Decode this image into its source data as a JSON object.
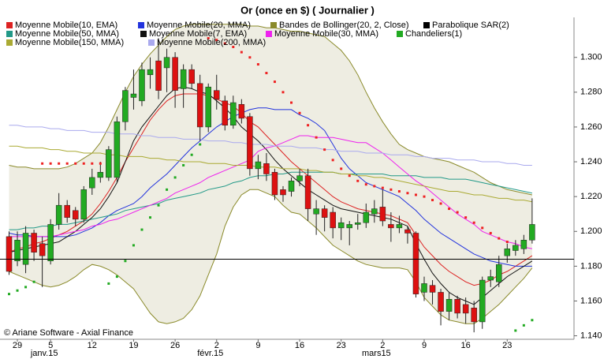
{
  "chart_data": {
    "type": "candlestick",
    "title": "Or (once en $)  ( Journalier )",
    "credit": "© Ariane Software - Axial Finance",
    "categories": [
      null,
      "29",
      null,
      null,
      null,
      "5",
      null,
      null,
      null,
      null,
      "12",
      null,
      null,
      null,
      null,
      "19",
      null,
      null,
      null,
      null,
      "26",
      null,
      null,
      null,
      null,
      "2",
      null,
      null,
      null,
      null,
      "9",
      null,
      null,
      null,
      null,
      "16",
      null,
      null,
      null,
      null,
      "23",
      null,
      null,
      null,
      null,
      "2",
      null,
      null,
      null,
      null,
      "9",
      null,
      null,
      null,
      null,
      "16",
      null,
      null,
      null,
      null,
      "23",
      null,
      null,
      null
    ],
    "period_labels": [
      null,
      null,
      null,
      null,
      null,
      "janv.15",
      null,
      null,
      null,
      null,
      null,
      null,
      null,
      null,
      null,
      null,
      null,
      null,
      null,
      null,
      null,
      null,
      null,
      null,
      null,
      "févr.15",
      null,
      null,
      null,
      null,
      null,
      null,
      null,
      null,
      null,
      null,
      null,
      null,
      null,
      null,
      null,
      null,
      null,
      null,
      null,
      "mars15",
      null,
      null,
      null,
      null,
      null,
      null,
      null,
      null,
      null,
      null,
      null,
      null,
      null,
      null,
      null,
      null,
      null,
      null
    ],
    "ylim": [
      1.138,
      1.323
    ],
    "yticks": [
      {
        "value": 1.14,
        "label": "1.140"
      },
      {
        "value": 1.16,
        "label": "1.160"
      },
      {
        "value": 1.18,
        "label": "1.180"
      },
      {
        "value": 1.2,
        "label": "1.200"
      },
      {
        "value": 1.22,
        "label": "1.220"
      },
      {
        "value": 1.24,
        "label": "1.240"
      },
      {
        "value": 1.26,
        "label": "1.260"
      },
      {
        "value": 1.28,
        "label": "1.280"
      },
      {
        "value": 1.3,
        "label": "1.300"
      }
    ],
    "hline": 1.184,
    "series": [
      {
        "name": "Moyenne Mobile(10, EMA)",
        "kind": "line",
        "color": "#dd2222",
        "values": [
          1.188,
          1.19,
          1.191,
          1.193,
          1.194,
          1.196,
          1.198,
          1.2,
          1.203,
          1.206,
          1.21,
          1.216,
          1.223,
          1.231,
          1.24,
          1.248,
          1.256,
          1.264,
          1.27,
          1.275,
          1.278,
          1.279,
          1.279,
          1.279,
          1.278,
          1.276,
          1.274,
          1.272,
          1.268,
          1.263,
          1.26,
          1.255,
          1.25,
          1.245,
          1.24,
          1.236,
          1.232,
          1.228,
          1.224,
          1.22,
          1.217,
          1.215,
          1.213,
          1.212,
          1.211,
          1.21,
          1.209,
          1.207,
          1.205,
          1.198,
          1.191,
          1.186,
          1.181,
          1.177,
          1.174,
          1.171,
          1.169,
          1.17,
          1.172,
          1.175,
          1.177,
          1.18,
          1.183,
          1.186
        ]
      },
      {
        "name": "Moyenne Mobile(20, MMA)",
        "kind": "line",
        "color": "#2233dd",
        "values": [
          1.199,
          1.198,
          1.198,
          1.197,
          1.197,
          1.197,
          1.197,
          1.197,
          1.198,
          1.2,
          1.202,
          1.205,
          1.209,
          1.212,
          1.214,
          1.216,
          1.22,
          1.225,
          1.229,
          1.233,
          1.238,
          1.243,
          1.248,
          1.252,
          1.256,
          1.26,
          1.263,
          1.266,
          1.268,
          1.27,
          1.271,
          1.271,
          1.27,
          1.27,
          1.27,
          1.267,
          1.265,
          1.262,
          1.258,
          1.25,
          1.242,
          1.236,
          1.232,
          1.228,
          1.226,
          1.224,
          1.222,
          1.22,
          1.216,
          1.212,
          1.207,
          1.203,
          1.199,
          1.196,
          1.193,
          1.19,
          1.187,
          1.185,
          1.183,
          1.182,
          1.181,
          1.18,
          1.18,
          1.18
        ]
      },
      {
        "name": "Bandes de Bollinger(20, 2, Close)",
        "kind": "band",
        "color": "#8a8a2a",
        "fill": "#eeede2",
        "upper": [
          1.238,
          1.237,
          1.237,
          1.236,
          1.236,
          1.236,
          1.236,
          1.237,
          1.239,
          1.242,
          1.245,
          1.251,
          1.26,
          1.27,
          1.28,
          1.289,
          1.296,
          1.302,
          1.307,
          1.312,
          1.316,
          1.318,
          1.319,
          1.319,
          1.319,
          1.319,
          1.319,
          1.319,
          1.319,
          1.318,
          1.318,
          1.317,
          1.317,
          1.316,
          1.315,
          1.315,
          1.314,
          1.313,
          1.312,
          1.308,
          1.304,
          1.298,
          1.29,
          1.28,
          1.271,
          1.263,
          1.256,
          1.25,
          1.247,
          1.245,
          1.243,
          1.242,
          1.241,
          1.24,
          1.238,
          1.236,
          1.234,
          1.231,
          1.228,
          1.226,
          1.224,
          1.223,
          1.222,
          1.221
        ],
        "lower": [
          1.177,
          1.175,
          1.173,
          1.171,
          1.169,
          1.168,
          1.169,
          1.171,
          1.174,
          1.178,
          1.181,
          1.18,
          1.178,
          1.175,
          1.171,
          1.167,
          1.16,
          1.153,
          1.148,
          1.147,
          1.148,
          1.15,
          1.155,
          1.163,
          1.175,
          1.187,
          1.203,
          1.214,
          1.221,
          1.224,
          1.224,
          1.222,
          1.22,
          1.215,
          1.211,
          1.21,
          1.206,
          1.202,
          1.197,
          1.192,
          1.189,
          1.186,
          1.183,
          1.181,
          1.18,
          1.179,
          1.179,
          1.179,
          1.178,
          1.171,
          1.162,
          1.157,
          1.152,
          1.149,
          1.148,
          1.147,
          1.147,
          1.15,
          1.154,
          1.158,
          1.163,
          1.168,
          1.173,
          1.179
        ]
      },
      {
        "name": "Parabolique SAR(2)",
        "kind": "dots",
        "color": "#000000",
        "above_color": "#ee2222",
        "below_color": "#22aa22",
        "values": [
          1.164,
          1.166,
          1.168,
          1.171,
          1.239,
          1.239,
          1.239,
          1.239,
          1.239,
          1.239,
          1.239,
          1.239,
          1.17,
          1.174,
          1.183,
          1.192,
          1.201,
          1.208,
          1.215,
          1.224,
          1.231,
          1.238,
          1.244,
          1.25,
          1.311,
          1.31,
          1.308,
          1.306,
          1.303,
          1.3,
          1.296,
          1.291,
          1.286,
          1.28,
          1.274,
          1.268,
          1.261,
          1.254,
          1.247,
          1.241,
          1.236,
          1.232,
          1.229,
          1.227,
          1.226,
          1.225,
          1.224,
          1.223,
          1.222,
          1.221,
          1.22,
          1.218,
          1.216,
          1.213,
          1.211,
          1.208,
          1.205,
          1.202,
          1.199,
          1.196,
          1.194,
          1.143,
          1.146,
          1.149
        ]
      },
      {
        "name": "Moyenne Mobile(50, MMA)",
        "kind": "line",
        "color": "#229988",
        "values": [
          1.201,
          1.201,
          1.202,
          1.202,
          1.203,
          1.203,
          1.204,
          1.204,
          1.205,
          1.206,
          1.207,
          1.208,
          1.209,
          1.21,
          1.212,
          1.213,
          1.214,
          1.215,
          1.216,
          1.218,
          1.219,
          1.22,
          1.221,
          1.222,
          1.224,
          1.225,
          1.226,
          1.228,
          1.229,
          1.231,
          1.232,
          1.232,
          1.233,
          1.233,
          1.234,
          1.234,
          1.234,
          1.234,
          1.234,
          1.234,
          1.233,
          1.233,
          1.233,
          1.233,
          1.233,
          1.233,
          1.232,
          1.232,
          1.232,
          1.232,
          1.231,
          1.231,
          1.231,
          1.23,
          1.23,
          1.23,
          1.229,
          1.228,
          1.227,
          1.226,
          1.225,
          1.224,
          1.223,
          1.222
        ]
      },
      {
        "name": "Moyenne Mobile(7, EMA)",
        "kind": "line",
        "color": "#111111",
        "values": [
          1.188,
          1.189,
          1.19,
          1.191,
          1.192,
          1.193,
          1.194,
          1.197,
          1.2,
          1.204,
          1.208,
          1.213,
          1.22,
          1.228,
          1.24,
          1.252,
          1.26,
          1.266,
          1.272,
          1.278,
          1.282,
          1.283,
          1.282,
          1.28,
          1.279,
          1.275,
          1.271,
          1.266,
          1.26,
          1.256,
          1.252,
          1.247,
          1.241,
          1.236,
          1.232,
          1.228,
          1.224,
          1.221,
          1.218,
          1.215,
          1.213,
          1.212,
          1.211,
          1.21,
          1.209,
          1.208,
          1.207,
          1.205,
          1.203,
          1.193,
          1.184,
          1.176,
          1.17,
          1.165,
          1.162,
          1.16,
          1.158,
          1.162,
          1.166,
          1.17,
          1.174,
          1.177,
          1.18,
          1.183
        ]
      },
      {
        "name": "Moyenne Mobile(30, MMA)",
        "kind": "line",
        "color": "#ee22ee",
        "values": [
          1.197,
          1.197,
          1.197,
          1.197,
          1.197,
          1.197,
          1.198,
          1.199,
          1.2,
          1.201,
          1.203,
          1.204,
          1.206,
          1.207,
          1.209,
          1.211,
          1.213,
          1.215,
          1.217,
          1.219,
          1.222,
          1.224,
          1.226,
          1.228,
          1.231,
          1.233,
          1.235,
          1.237,
          1.239,
          1.241,
          1.246,
          1.248,
          1.249,
          1.251,
          1.253,
          1.255,
          1.255,
          1.254,
          1.254,
          1.254,
          1.253,
          1.252,
          1.251,
          1.251,
          1.248,
          1.245,
          1.241,
          1.237,
          1.233,
          1.229,
          1.226,
          1.222,
          1.218,
          1.214,
          1.21,
          1.207,
          1.204,
          1.2,
          1.198,
          1.196,
          1.194,
          1.193,
          1.191,
          1.19
        ]
      },
      {
        "name": "Chandeliers(1)",
        "kind": "candles",
        "color": "#22aa22",
        "down_color": "#dd1111",
        "open": [
          1.197,
          1.183,
          1.181,
          1.199,
          1.193,
          1.183,
          1.204,
          1.215,
          1.212,
          1.207,
          1.225,
          1.231,
          1.231,
          1.231,
          1.263,
          1.277,
          1.275,
          1.29,
          1.298,
          1.294,
          1.3,
          1.282,
          1.293,
          1.285,
          1.26,
          1.281,
          1.275,
          1.261,
          1.273,
          1.266,
          1.236,
          1.239,
          1.234,
          1.224,
          1.223,
          1.229,
          1.232,
          1.21,
          1.213,
          1.211,
          1.202,
          1.202,
          1.204,
          1.205,
          1.21,
          1.214,
          1.204,
          1.202,
          1.201,
          1.199,
          1.165,
          1.169,
          1.165,
          1.154,
          1.161,
          1.158,
          1.156,
          1.148,
          1.172,
          1.171,
          1.186,
          1.189,
          1.19,
          1.195
        ],
        "high": [
          1.2,
          1.2,
          1.203,
          1.201,
          1.197,
          1.207,
          1.222,
          1.218,
          1.214,
          1.226,
          1.236,
          1.24,
          1.249,
          1.266,
          1.283,
          1.293,
          1.297,
          1.3,
          1.311,
          1.305,
          1.303,
          1.296,
          1.296,
          1.29,
          1.285,
          1.29,
          1.278,
          1.278,
          1.276,
          1.268,
          1.244,
          1.245,
          1.236,
          1.226,
          1.231,
          1.236,
          1.236,
          1.218,
          1.215,
          1.214,
          1.208,
          1.206,
          1.21,
          1.216,
          1.218,
          1.224,
          1.211,
          1.209,
          1.203,
          1.2,
          1.174,
          1.172,
          1.167,
          1.165,
          1.163,
          1.162,
          1.16,
          1.174,
          1.178,
          1.186,
          1.193,
          1.195,
          1.198,
          1.219
        ],
        "low": [
          1.175,
          1.18,
          1.176,
          1.183,
          1.168,
          1.181,
          1.201,
          1.205,
          1.203,
          1.205,
          1.221,
          1.228,
          1.229,
          1.228,
          1.258,
          1.27,
          1.272,
          1.282,
          1.276,
          1.28,
          1.271,
          1.271,
          1.282,
          1.252,
          1.257,
          1.27,
          1.258,
          1.259,
          1.262,
          1.232,
          1.23,
          1.229,
          1.218,
          1.217,
          1.22,
          1.226,
          1.206,
          1.198,
          1.2,
          1.196,
          1.195,
          1.192,
          1.201,
          1.202,
          1.205,
          1.203,
          1.194,
          1.199,
          1.193,
          1.162,
          1.16,
          1.158,
          1.146,
          1.149,
          1.15,
          1.147,
          1.142,
          1.144,
          1.168,
          1.168,
          1.182,
          1.186,
          1.187,
          1.193
        ],
        "close": [
          1.177,
          1.195,
          1.199,
          1.188,
          1.186,
          1.204,
          1.215,
          1.208,
          1.207,
          1.224,
          1.231,
          1.234,
          1.247,
          1.263,
          1.281,
          1.279,
          1.293,
          1.293,
          1.281,
          1.3,
          1.281,
          1.293,
          1.285,
          1.26,
          1.283,
          1.276,
          1.261,
          1.274,
          1.265,
          1.236,
          1.24,
          1.233,
          1.221,
          1.221,
          1.229,
          1.232,
          1.213,
          1.213,
          1.208,
          1.202,
          1.205,
          1.204,
          1.205,
          1.211,
          1.213,
          1.206,
          1.202,
          1.204,
          1.199,
          1.164,
          1.17,
          1.165,
          1.154,
          1.161,
          1.153,
          1.153,
          1.148,
          1.172,
          1.174,
          1.181,
          1.19,
          1.192,
          1.195,
          1.204
        ]
      },
      {
        "name": "Moyenne Mobile(150, MMA)",
        "kind": "line",
        "color": "#aaaa33",
        "values": [
          1.249,
          1.249,
          1.248,
          1.248,
          1.248,
          1.247,
          1.247,
          1.246,
          1.246,
          1.245,
          1.245,
          1.245,
          1.244,
          1.244,
          1.243,
          1.243,
          1.243,
          1.242,
          1.242,
          1.241,
          1.241,
          1.24,
          1.24,
          1.24,
          1.239,
          1.239,
          1.239,
          1.238,
          1.238,
          1.238,
          1.237,
          1.237,
          1.237,
          1.236,
          1.236,
          1.236,
          1.235,
          1.235,
          1.234,
          1.234,
          1.233,
          1.233,
          1.232,
          1.232,
          1.231,
          1.231,
          1.23,
          1.229,
          1.228,
          1.227,
          1.226,
          1.225,
          1.224,
          1.223,
          1.223,
          1.222,
          1.221,
          1.221,
          1.22,
          1.219,
          1.219,
          1.218,
          1.218,
          1.217
        ]
      },
      {
        "name": "Moyenne Mobile(200, MMA)",
        "kind": "line",
        "color": "#aaaaee",
        "values": [
          1.261,
          1.261,
          1.26,
          1.26,
          1.26,
          1.259,
          1.259,
          1.258,
          1.258,
          1.258,
          1.257,
          1.257,
          1.257,
          1.256,
          1.256,
          1.256,
          1.255,
          1.255,
          1.254,
          1.254,
          1.254,
          1.253,
          1.253,
          1.253,
          1.252,
          1.252,
          1.252,
          1.251,
          1.251,
          1.25,
          1.25,
          1.25,
          1.249,
          1.249,
          1.249,
          1.248,
          1.248,
          1.248,
          1.247,
          1.247,
          1.246,
          1.246,
          1.246,
          1.245,
          1.245,
          1.245,
          1.244,
          1.244,
          1.244,
          1.243,
          1.243,
          1.242,
          1.242,
          1.242,
          1.241,
          1.241,
          1.241,
          1.24,
          1.24,
          1.24,
          1.239,
          1.239,
          1.238,
          1.238
        ]
      }
    ]
  }
}
